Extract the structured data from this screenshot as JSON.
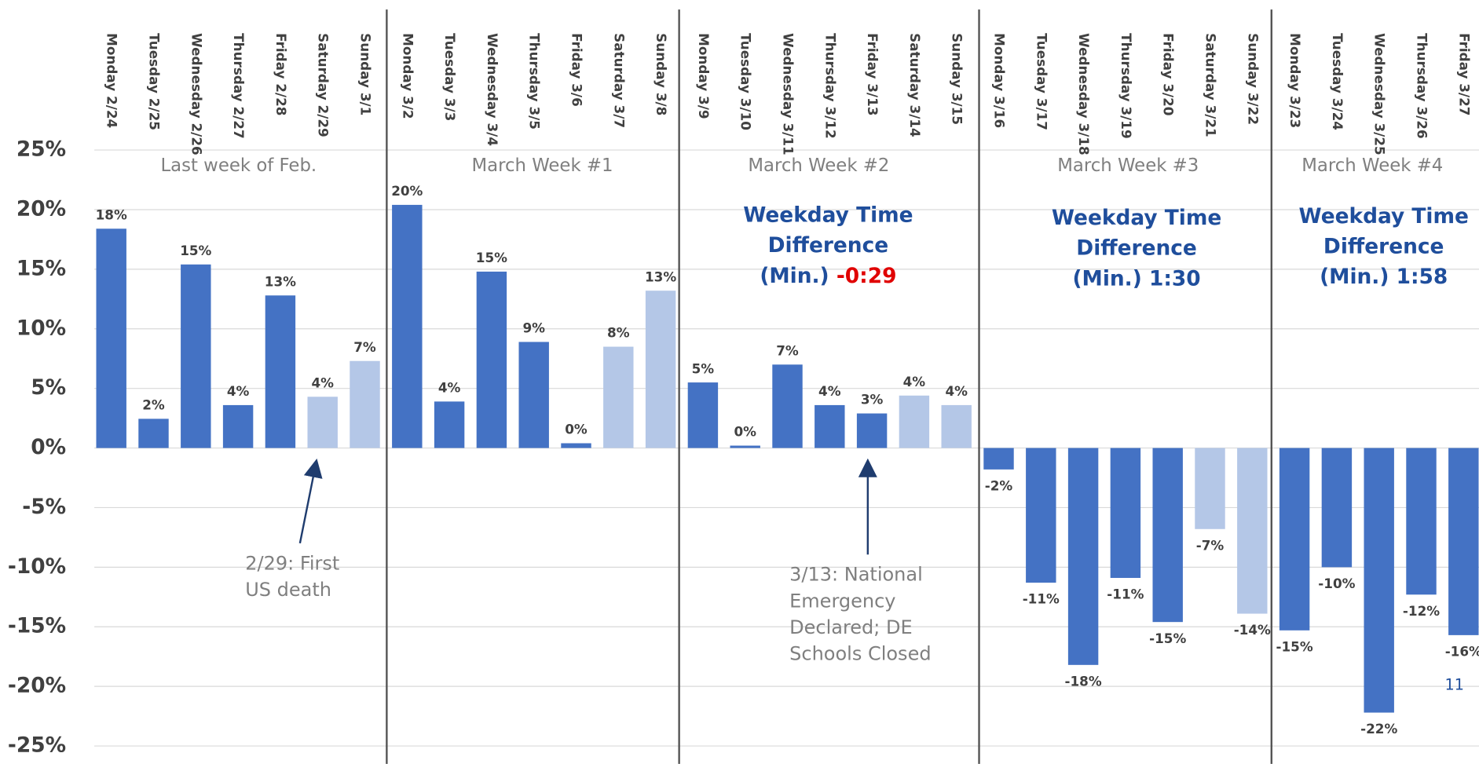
{
  "chart_data": {
    "type": "bar",
    "categories": [
      "Monday 2/24",
      "Tuesday 2/25",
      "Wednesday 2/26",
      "Thursday 2/27",
      "Friday 2/28",
      "Saturday 2/29",
      "Sunday 3/1",
      "Monday 3/2",
      "Tuesday 3/3",
      "Wednesday 3/4",
      "Thursday 3/5",
      "Friday 3/6",
      "Saturday 3/7",
      "Sunday 3/8",
      "Monday 3/9",
      "Tuesday 3/10",
      "Wednesday 3/11",
      "Thursday 3/12",
      "Friday 3/13",
      "Saturday 3/14",
      "Sunday 3/15",
      "Monday 3/16",
      "Tuesday 3/17",
      "Wednesday 3/18",
      "Thursday 3/19",
      "Friday 3/20",
      "Saturday 3/21",
      "Sunday 3/22",
      "Monday 3/23",
      "Tuesday 3/24",
      "Wednesday 3/25",
      "Thursday 3/26",
      "Friday 3/27"
    ],
    "values": [
      18.4,
      2.45,
      15.4,
      3.6,
      12.8,
      4.3,
      7.3,
      20.4,
      3.9,
      14.8,
      8.9,
      0.4,
      8.5,
      13.2,
      5.5,
      0.2,
      7.0,
      3.6,
      2.9,
      4.4,
      3.6,
      -1.8,
      -11.3,
      -18.2,
      -10.9,
      -14.6,
      -6.8,
      -13.9,
      -15.3,
      -10.0,
      -22.2,
      -12.3,
      -15.7
    ],
    "value_labels": [
      "18%",
      "2%",
      "15%",
      "4%",
      "13%",
      "4%",
      "7%",
      "20%",
      "4%",
      "15%",
      "9%",
      "0%",
      "8%",
      "13%",
      "5%",
      "0%",
      "7%",
      "4%",
      "3%",
      "4%",
      "4%",
      "-2%",
      "-11%",
      "-18%",
      "-11%",
      "-15%",
      "-7%",
      "-14%",
      "-15%",
      "-10%",
      "-22%",
      "-12%",
      "-16%"
    ],
    "colors": [
      "#4472c4",
      "#4472c4",
      "#4472c4",
      "#4472c4",
      "#4472c4",
      "#b4c7e7",
      "#b4c7e7",
      "#4472c4",
      "#4472c4",
      "#4472c4",
      "#4472c4",
      "#4472c4",
      "#b4c7e7",
      "#b4c7e7",
      "#4472c4",
      "#4472c4",
      "#4472c4",
      "#4472c4",
      "#4472c4",
      "#b4c7e7",
      "#b4c7e7",
      "#4472c4",
      "#4472c4",
      "#4472c4",
      "#4472c4",
      "#4472c4",
      "#b4c7e7",
      "#b4c7e7",
      "#4472c4",
      "#4472c4",
      "#4472c4",
      "#4472c4",
      "#4472c4"
    ],
    "ylim": [
      -25,
      25
    ],
    "yticks": [
      {
        "value": 25,
        "label": "25%"
      },
      {
        "value": 20,
        "label": "20%"
      },
      {
        "value": 15,
        "label": "15%"
      },
      {
        "value": 10,
        "label": "10%"
      },
      {
        "value": 5,
        "label": "5%"
      },
      {
        "value": 0,
        "label": "0%"
      },
      {
        "value": -5,
        "label": "-5%"
      },
      {
        "value": -10,
        "label": "-10%"
      },
      {
        "value": -15,
        "label": "-15%"
      },
      {
        "value": -20,
        "label": "-20%"
      },
      {
        "value": -25,
        "label": "-25%"
      }
    ],
    "grid": true,
    "week_labels": [
      "Last week of Feb.",
      "March Week #1",
      "March Week #2",
      "March Week #3",
      "March Week #4"
    ],
    "weekday_diffs": [
      {
        "lines": [
          "Weekday Time",
          "Difference",
          "(Min.)"
        ],
        "value": "-0:29",
        "value_color": "#e00000"
      },
      {
        "lines": [
          "Weekday Time",
          "Difference",
          "(Min.)"
        ],
        "value": "1:30",
        "value_color": "#1f4e9c"
      },
      {
        "lines": [
          "Weekday Time",
          "Difference",
          "(Min.)"
        ],
        "value": "1:58",
        "value_color": "#1f4e9c"
      }
    ],
    "annotations": [
      {
        "lines": [
          "2/29: First",
          "US death"
        ]
      },
      {
        "lines": [
          "3/13: National",
          "Emergency",
          "Declared; DE",
          "Schools Closed"
        ]
      }
    ],
    "page_number": "11"
  }
}
